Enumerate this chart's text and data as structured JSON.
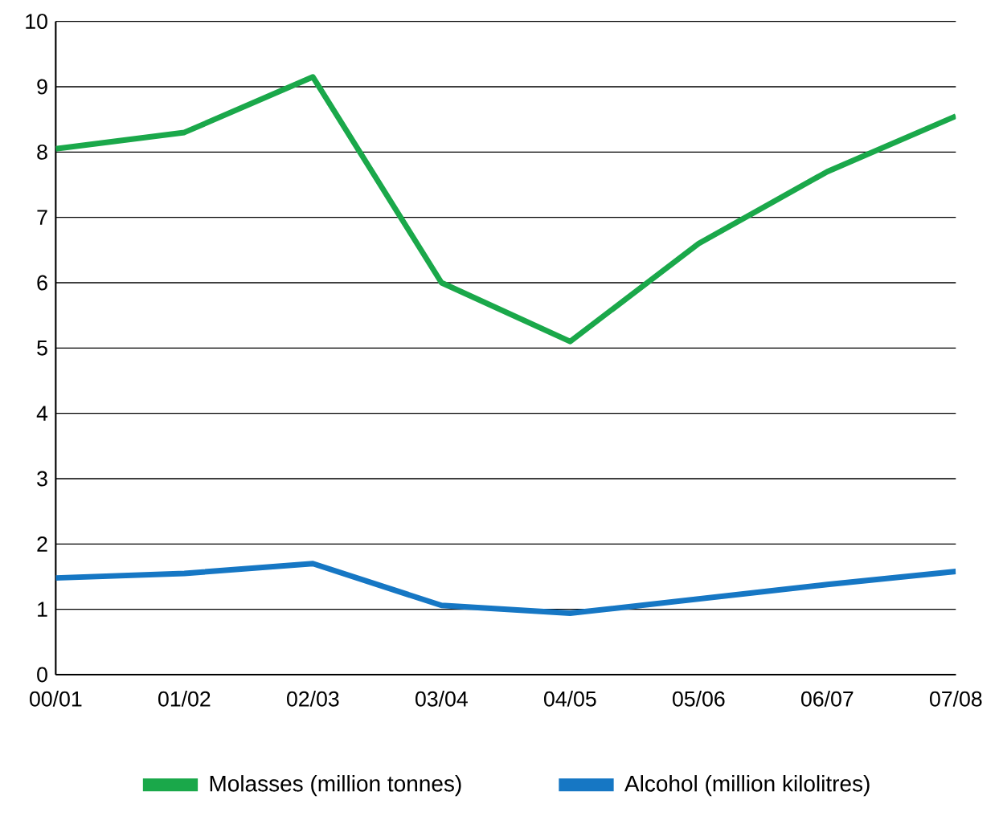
{
  "chart_data": {
    "type": "line",
    "categories": [
      "00/01",
      "01/02",
      "02/03",
      "03/04",
      "04/05",
      "05/06",
      "06/07",
      "07/08"
    ],
    "series": [
      {
        "name": "Molasses (million tonnes)",
        "color": "#1aa84a",
        "values": [
          8.05,
          8.3,
          9.15,
          6.0,
          5.1,
          6.6,
          7.7,
          8.55
        ]
      },
      {
        "name": "Alcohol (million kilolitres)",
        "color": "#1677c4",
        "values": [
          1.48,
          1.55,
          1.7,
          1.06,
          0.94,
          1.16,
          1.38,
          1.58
        ]
      }
    ],
    "ylim": [
      0,
      10
    ],
    "yticks": [
      0,
      1,
      2,
      3,
      4,
      5,
      6,
      7,
      8,
      9,
      10
    ],
    "grid": "y",
    "legend": "bottom",
    "marker": "none",
    "line_style": "solid"
  }
}
